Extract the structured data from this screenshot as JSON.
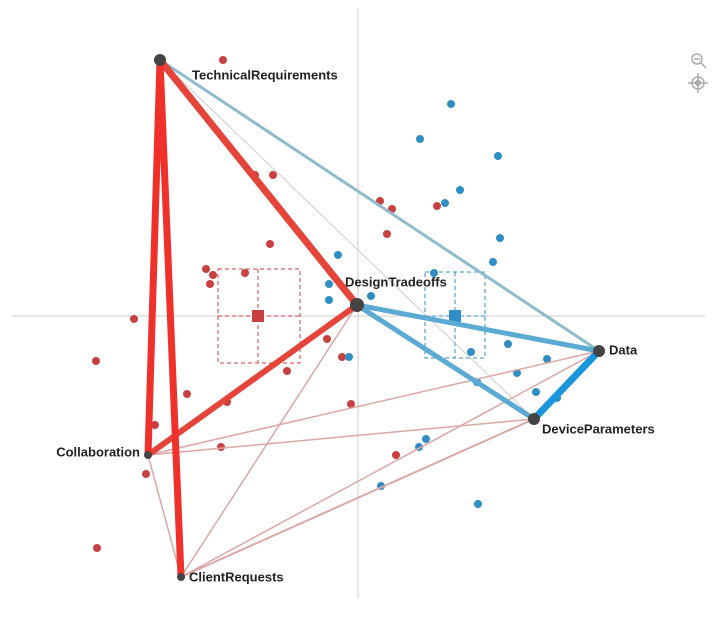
{
  "nodes": [
    {
      "label": "TechnicalRequirements"
    },
    {
      "label": "DesignTradeoffs"
    },
    {
      "label": "Data"
    },
    {
      "label": "DeviceParameters"
    },
    {
      "label": "Collaboration"
    },
    {
      "label": "ClientRequests"
    }
  ]
}
